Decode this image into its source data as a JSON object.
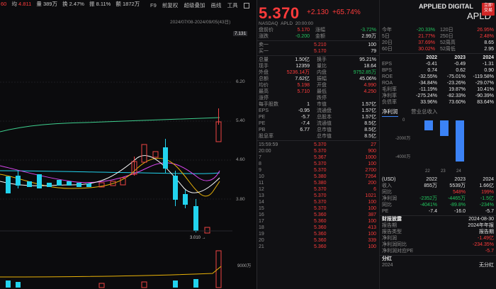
{
  "toolbar": {
    "stats": [
      {
        "k": "60",
        "v": "",
        "c": "red"
      },
      {
        "k": "均",
        "v": "4.811",
        "c": "red"
      },
      {
        "k": "量",
        "v": "389万",
        "c": "white"
      },
      {
        "k": "换",
        "v": "2.47%",
        "c": "white"
      },
      {
        "k": "振",
        "v": "8.11%",
        "c": "white"
      },
      {
        "k": "额",
        "v": "1872万",
        "c": "white"
      }
    ],
    "menu": [
      "F9",
      "前复权",
      "超级叠加",
      "画线",
      "工具"
    ],
    "date_range": "2024/07/08-2024/09/05(43日)",
    "price_levels": [
      "7.131",
      "6.20",
      "5.40",
      "4.60",
      "3.80"
    ],
    "low_marker": "3.010",
    "volume_label": "9000万"
  },
  "quote": {
    "price": "5.370",
    "change": "+2.130",
    "change_pct": "+65.74%",
    "exchange": "NASDAQ",
    "ticker_code": "APLD",
    "time": "20:00:00",
    "company": "APPLIED DIGITAL",
    "symbol": "APLD",
    "trade_badge": "立即交易"
  },
  "book": [
    {
      "l": "盘前价",
      "v": "5.170",
      "l2": "涨幅",
      "v2": "-3.72%",
      "c": "red",
      "c2": "green"
    },
    {
      "l": "涨跌",
      "v": "-0.200",
      "l2": "金额",
      "v2": "2.99万",
      "c": "green",
      "c2": "white"
    }
  ],
  "bidask": [
    {
      "l": "卖一",
      "v": "5.210",
      "n": "100"
    },
    {
      "l": "买一",
      "v": "5.170",
      "n": "79"
    }
  ],
  "stats": [
    {
      "l": "总量",
      "v": "1.50亿",
      "l2": "换手",
      "v2": "95.21%"
    },
    {
      "l": "现手",
      "v": "12359",
      "l2": "量比",
      "v2": "18.64"
    },
    {
      "l": "外盘",
      "v": "5236.14万",
      "l2": "内盘",
      "v2": "9752.85万",
      "c": "red",
      "c2": "green"
    },
    {
      "l": "总额",
      "v": "7.62亿",
      "l2": "振幅",
      "v2": "45.06%"
    },
    {
      "l": "均价",
      "v": "5.198",
      "l2": "开盘",
      "v2": "4.990",
      "c": "red",
      "c2": "red"
    },
    {
      "l": "最高",
      "v": "5.710",
      "l2": "最低",
      "v2": "4.250",
      "c": "red",
      "c2": "red"
    },
    {
      "l": "涨停",
      "v": "",
      "l2": "跌停",
      "v2": ""
    },
    {
      "l": "每手股数",
      "v": "1",
      "l2": "市值",
      "v2": "1.57亿"
    },
    {
      "l": "EPS",
      "v": "-0.95",
      "l2": "流通盘",
      "v2": "1.57亿"
    },
    {
      "l": "PE",
      "v": "-5.7",
      "l2": "总股本",
      "v2": "1.57亿"
    },
    {
      "l": "PE",
      "v": "-7.4",
      "l2": "流通值",
      "v2": "8.5亿"
    },
    {
      "l": "PB",
      "v": "6.77",
      "l2": "总市值",
      "v2": "8.5亿"
    },
    {
      "l": "股息率",
      "v": "",
      "l2": "总市值",
      "v2": "8.5亿"
    }
  ],
  "ticks": [
    {
      "t": "15:59:59",
      "p": "5.370",
      "n": "27"
    },
    {
      "t": "20:00",
      "p": "5.370",
      "n": "900"
    },
    {
      "t": "7",
      "p": "5.367",
      "n": "1000"
    },
    {
      "t": "8",
      "p": "5.370",
      "n": "100"
    },
    {
      "t": "9",
      "p": "5.370",
      "n": "2700"
    },
    {
      "t": "10",
      "p": "5.380",
      "n": "7264"
    },
    {
      "t": "11",
      "p": "5.380",
      "n": "200"
    },
    {
      "t": "12",
      "p": "5.370",
      "n": "6"
    },
    {
      "t": "13",
      "p": "5.370",
      "n": "1021"
    },
    {
      "t": "14",
      "p": "5.370",
      "n": "100"
    },
    {
      "t": "15",
      "p": "5.370",
      "n": "100"
    },
    {
      "t": "16",
      "p": "5.360",
      "n": "387"
    },
    {
      "t": "17",
      "p": "5.360",
      "n": "100"
    },
    {
      "t": "18",
      "p": "5.360",
      "n": "413"
    },
    {
      "t": "19",
      "p": "5.360",
      "n": "100"
    },
    {
      "t": "20",
      "p": "5.360",
      "n": "339"
    },
    {
      "t": "21",
      "p": "5.360",
      "n": "100"
    }
  ],
  "perf": [
    {
      "l": "今年",
      "v": "-20.33%",
      "l2": "120日",
      "v2": "26.95%",
      "c": "green",
      "c2": "red"
    },
    {
      "l": "5日",
      "v": "21.77%",
      "l2": "250日",
      "v2": "2.48%",
      "c": "red",
      "c2": "red"
    },
    {
      "l": "20日",
      "v": "37.69%",
      "l2": "52周高",
      "v2": "8.65",
      "c": "red",
      "c2": "white"
    },
    {
      "l": "60日",
      "v": "30.02%",
      "l2": "52周低",
      "v2": "2.95",
      "c": "red",
      "c2": "white"
    }
  ],
  "fin_years": [
    "2022",
    "2023",
    "2024"
  ],
  "fin": [
    {
      "l": "EPS",
      "v": [
        "-0.41",
        "-0.49",
        "-1.31"
      ]
    },
    {
      "l": "BPS",
      "v": [
        "0.74",
        "0.62",
        "0.90"
      ]
    },
    {
      "l": "ROE",
      "v": [
        "-32.55%",
        "-75.01%",
        "-119.58%"
      ]
    },
    {
      "l": "ROA",
      "v": [
        "-34.84%",
        "-23.26%",
        "-29.07%"
      ]
    },
    {
      "l": "毛利率",
      "v": [
        "-11.19%",
        "19.87%",
        "10.41%"
      ]
    },
    {
      "l": "净利率",
      "v": [
        "-275.24%",
        "-82.33%",
        "-90.39%"
      ]
    },
    {
      "l": "负债率",
      "v": [
        "33.96%",
        "73.60%",
        "83.64%"
      ]
    }
  ],
  "tabs": [
    "净利润",
    "营业总收入"
  ],
  "profit_chart": {
    "y_ticks": [
      "0",
      "-2000万",
      "-4000万"
    ],
    "x_ticks": [
      "22",
      "23",
      "24"
    ]
  },
  "usd_years": [
    "2022",
    "2023",
    "2024"
  ],
  "usd": [
    {
      "l": "收入",
      "v": [
        "855万",
        "5539万",
        "1.66亿"
      ]
    },
    {
      "l": "同比",
      "v": [
        "",
        "548%",
        "199%"
      ]
    },
    {
      "l": "净利润",
      "v": [
        "-2352万",
        "-4465万",
        "-1.5亿"
      ]
    },
    {
      "l": "同比",
      "v": [
        "-4041%",
        "-89.8%",
        "-234%"
      ]
    },
    {
      "l": "PE",
      "v": [
        "-7.4",
        "-16.0",
        "-5.7"
      ]
    }
  ],
  "report": [
    {
      "l": "财报披露",
      "v": "2024-08-30"
    },
    {
      "l": "报告期",
      "v": "2024年年报"
    },
    {
      "l": "报告类型",
      "v": "报告期"
    },
    {
      "l": "净利润",
      "v": "-1.49亿"
    },
    {
      "l": "净利润同比",
      "v": "-234.35%"
    },
    {
      "l": "净利润对应PE",
      "v": "-5.7"
    }
  ],
  "dividend": {
    "title": "分红",
    "year": "2024",
    "value": "无分红"
  }
}
